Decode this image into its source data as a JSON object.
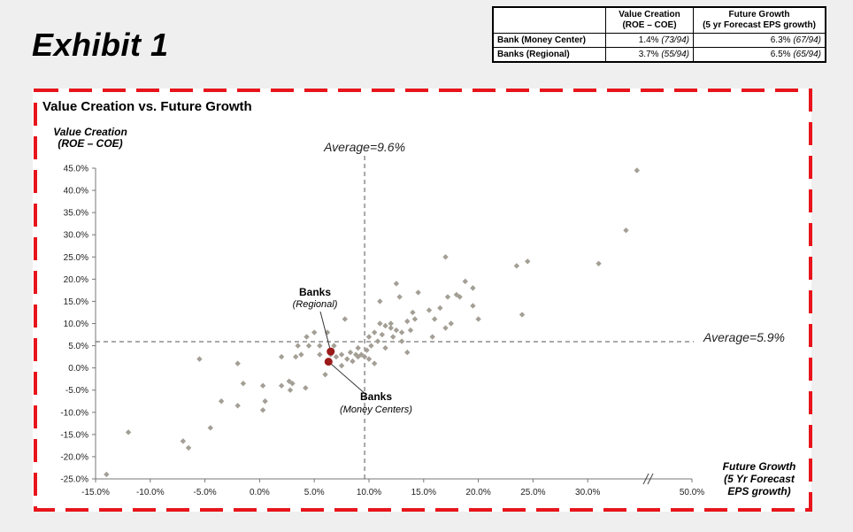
{
  "exhibit_title": "Exhibit 1",
  "summary_table": {
    "headers": [
      "",
      "Value Creation\n(ROE – COE)",
      "Future Growth\n(5 yr Forecast  EPS growth)"
    ],
    "header_col1_line1": "Value Creation",
    "header_col1_line2": "(ROE – COE)",
    "header_col2_line1": "Future Growth",
    "header_col2_line2": "(5 yr Forecast  EPS growth)",
    "rows": [
      {
        "label": "Bank (Money Center)",
        "vc": "1.4%",
        "vc_rank": "(73/94)",
        "fg": "6.3%",
        "fg_rank": "(67/94)"
      },
      {
        "label": "Banks (Regional)",
        "vc": "3.7%",
        "vc_rank": "(55/94)",
        "fg": "6.5%",
        "fg_rank": "(65/94)"
      }
    ]
  },
  "colors": {
    "frame_border": "#e8141b",
    "point": "#a39f95",
    "highlight": "#9b1a1a",
    "average_line": "#555555"
  },
  "chart_data": {
    "type": "scatter",
    "title": "Value Creation vs. Future Growth",
    "ylabel_line1": "Value Creation",
    "ylabel_line2": "(ROE – COE)",
    "xlabel_line1": "Future Growth",
    "xlabel_line2": "(5 Yr Forecast",
    "xlabel_line3": "EPS growth)",
    "xlim": [
      -15,
      35
    ],
    "ylim": [
      -25,
      45
    ],
    "x_ticks": [
      -15,
      -10,
      -5,
      0,
      5,
      10,
      15,
      20,
      25,
      30
    ],
    "x_tick_labels": [
      "-15.0%",
      "-10.0%",
      "-5.0%",
      "0.0%",
      "5.0%",
      "10.0%",
      "15.0%",
      "20.0%",
      "25.0%",
      "30.0%"
    ],
    "x_break_label": "50.0%",
    "y_ticks": [
      -25,
      -20,
      -15,
      -10,
      -5,
      0,
      5,
      10,
      15,
      20,
      25,
      30,
      35,
      40,
      45
    ],
    "y_tick_labels": [
      "-25.0%",
      "-20.0%",
      "-15.0%",
      "-10.0%",
      "-5.0%",
      "0.0%",
      "5.0%",
      "10.0%",
      "15.0%",
      "20.0%",
      "25.0%",
      "30.0%",
      "35.0%",
      "40.0%",
      "45.0%"
    ],
    "average_x": 9.6,
    "average_y": 5.9,
    "average_x_label": "Average=9.6%",
    "average_y_label": "Average=5.9%",
    "highlights": [
      {
        "name": "Banks",
        "subname": "(Regional)",
        "x": 6.5,
        "y": 3.7
      },
      {
        "name": "Banks",
        "subname": "(Money Centers)",
        "x": 6.3,
        "y": 1.4
      }
    ],
    "points": [
      [
        -14.0,
        -24.0
      ],
      [
        -12.0,
        -14.5
      ],
      [
        -7.0,
        -16.5
      ],
      [
        -6.5,
        -18.0
      ],
      [
        -5.5,
        2.0
      ],
      [
        -4.5,
        -13.5
      ],
      [
        -3.5,
        -7.5
      ],
      [
        -2.0,
        1.0
      ],
      [
        -2.0,
        -8.5
      ],
      [
        -1.5,
        -3.5
      ],
      [
        0.3,
        -4.0
      ],
      [
        0.3,
        -9.5
      ],
      [
        0.5,
        -7.5
      ],
      [
        2.0,
        -4.0
      ],
      [
        2.0,
        2.5
      ],
      [
        2.7,
        -3.0
      ],
      [
        2.8,
        -5.0
      ],
      [
        3.0,
        -3.5
      ],
      [
        3.3,
        2.5
      ],
      [
        3.5,
        5.0
      ],
      [
        3.8,
        3.0
      ],
      [
        4.2,
        -4.5
      ],
      [
        4.3,
        7.0
      ],
      [
        4.5,
        5.0
      ],
      [
        5.0,
        8.0
      ],
      [
        5.5,
        5.0
      ],
      [
        5.5,
        3.0
      ],
      [
        6.0,
        -1.5
      ],
      [
        6.2,
        8.0
      ],
      [
        6.5,
        3.0
      ],
      [
        6.8,
        5.0
      ],
      [
        7.0,
        2.5
      ],
      [
        7.5,
        3.0
      ],
      [
        7.5,
        0.5
      ],
      [
        7.8,
        11.0
      ],
      [
        8.0,
        2.0
      ],
      [
        8.3,
        3.5
      ],
      [
        8.5,
        1.5
      ],
      [
        8.8,
        3.0
      ],
      [
        9.0,
        4.5
      ],
      [
        9.0,
        2.5
      ],
      [
        9.3,
        3.0
      ],
      [
        9.6,
        2.5
      ],
      [
        9.8,
        4.0
      ],
      [
        10.0,
        7.0
      ],
      [
        10.0,
        2.0
      ],
      [
        10.2,
        5.0
      ],
      [
        10.5,
        1.0
      ],
      [
        10.5,
        8.0
      ],
      [
        10.8,
        6.0
      ],
      [
        11.0,
        10.0
      ],
      [
        11.0,
        15.0
      ],
      [
        11.2,
        7.5
      ],
      [
        11.5,
        9.5
      ],
      [
        11.5,
        4.5
      ],
      [
        12.0,
        9.0
      ],
      [
        12.0,
        10.0
      ],
      [
        12.2,
        7.0
      ],
      [
        12.5,
        8.5
      ],
      [
        12.5,
        19.0
      ],
      [
        12.8,
        16.0
      ],
      [
        13.0,
        6.0
      ],
      [
        13.0,
        8.0
      ],
      [
        13.5,
        3.5
      ],
      [
        13.5,
        10.5
      ],
      [
        13.8,
        8.5
      ],
      [
        14.0,
        12.5
      ],
      [
        14.2,
        11.0
      ],
      [
        14.5,
        17.0
      ],
      [
        15.5,
        13.0
      ],
      [
        15.8,
        7.0
      ],
      [
        16.0,
        11.0
      ],
      [
        16.5,
        13.5
      ],
      [
        17.0,
        25.0
      ],
      [
        17.0,
        9.0
      ],
      [
        17.2,
        16.0
      ],
      [
        17.5,
        10.0
      ],
      [
        18.0,
        16.5
      ],
      [
        18.3,
        16.0
      ],
      [
        18.8,
        19.5
      ],
      [
        19.5,
        18.0
      ],
      [
        19.5,
        14.0
      ],
      [
        20.0,
        11.0
      ],
      [
        23.5,
        23.0
      ],
      [
        24.0,
        12.0
      ],
      [
        24.5,
        24.0
      ],
      [
        31.0,
        23.5
      ],
      [
        33.5,
        31.0
      ],
      [
        34.5,
        44.5
      ]
    ]
  }
}
